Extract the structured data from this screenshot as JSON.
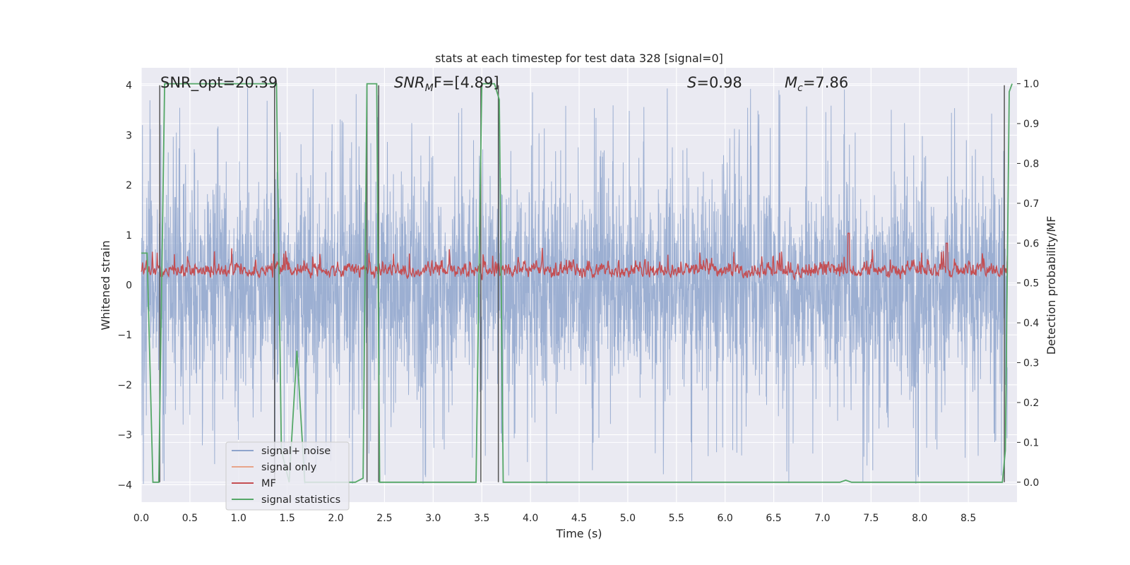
{
  "chart_data": {
    "type": "line",
    "title": "stats at each timestep for test data 328 [signal=0]",
    "xlabel": "Time (s)",
    "ylabel": "Whitened strain",
    "ylabel_right": "Detection probability/MF",
    "xlim": [
      0.0,
      9.0
    ],
    "ylim": [
      -4.35,
      4.35
    ],
    "ylim_right": [
      -0.05,
      1.04
    ],
    "xticks": [
      0.0,
      0.5,
      1.0,
      1.5,
      2.0,
      2.5,
      3.0,
      3.5,
      4.0,
      4.5,
      5.0,
      5.5,
      6.0,
      6.5,
      7.0,
      7.5,
      8.0,
      8.5
    ],
    "xtick_labels": [
      "0.0",
      "0.5",
      "1.0",
      "1.5",
      "2.0",
      "2.5",
      "3.0",
      "3.5",
      "4.0",
      "4.5",
      "5.0",
      "5.5",
      "6.0",
      "6.5",
      "7.0",
      "7.5",
      "8.0",
      "8.5"
    ],
    "yticks": [
      -4,
      -3,
      -2,
      -1,
      0,
      1,
      2,
      3,
      4
    ],
    "ytick_labels": [
      "−4",
      "−3",
      "−2",
      "−1",
      "0",
      "1",
      "2",
      "3",
      "4"
    ],
    "yticks_right": [
      0.0,
      0.1,
      0.2,
      0.3,
      0.4,
      0.5,
      0.6,
      0.7,
      0.8,
      0.9,
      1.0
    ],
    "ytick_labels_right": [
      "0.0",
      "0.1",
      "0.2",
      "0.3",
      "0.4",
      "0.5",
      "0.6",
      "0.7",
      "0.8",
      "0.9",
      "1.0"
    ],
    "grid": true,
    "legend_position": "lower-left",
    "annotations": {
      "snr_opt": "SNR_opt=20.39",
      "snr_mf_main": "SNR",
      "snr_mf_sub": "M",
      "snr_mf_rest": "F=[4.89]",
      "s_main": "S",
      "s_rest": "=0.98",
      "mc_main": "M",
      "mc_sub": "c",
      "mc_rest": "=7.86"
    },
    "series": [
      {
        "name": "signal+ noise",
        "color": "#8ea4cc",
        "description_axis": "left",
        "amplitude_typical": 1.6,
        "amplitude_peak": 4.0
      },
      {
        "name": "signal only",
        "color": "#e8a48a",
        "values": []
      },
      {
        "name": "MF",
        "color": "#c44e52",
        "axis": "right",
        "baseline": 0.5,
        "typical_peak": 0.6,
        "max": 0.625
      },
      {
        "name": "signal statistics",
        "color": "#55a868",
        "axis": "right",
        "x": [
          0.0,
          0.06,
          0.12,
          0.18,
          0.24,
          0.28,
          0.34,
          1.36,
          1.39,
          1.44,
          1.52,
          1.6,
          1.68,
          1.74,
          2.2,
          2.28,
          2.32,
          2.36,
          2.42,
          2.45,
          2.5,
          2.8,
          3.44,
          3.5,
          3.56,
          3.63,
          3.68,
          3.72,
          3.78,
          7.18,
          7.24,
          7.3,
          8.85,
          8.88,
          8.92,
          8.95
        ],
        "y": [
          0.575,
          0.575,
          0.0,
          0.0,
          1.0,
          1.0,
          1.0,
          1.0,
          1.0,
          0.08,
          0.0,
          0.33,
          0.0,
          0.0,
          0.0,
          0.01,
          1.0,
          1.0,
          1.0,
          0.0,
          0.0,
          0.0,
          0.0,
          1.0,
          1.0,
          1.0,
          0.96,
          0.0,
          0.0,
          0.0,
          0.005,
          0.0,
          0.0,
          0.08,
          0.98,
          1.0
        ]
      }
    ],
    "vertical_markers_x": [
      0.19,
      1.37,
      2.32,
      2.44,
      3.49,
      3.67,
      8.87
    ]
  }
}
